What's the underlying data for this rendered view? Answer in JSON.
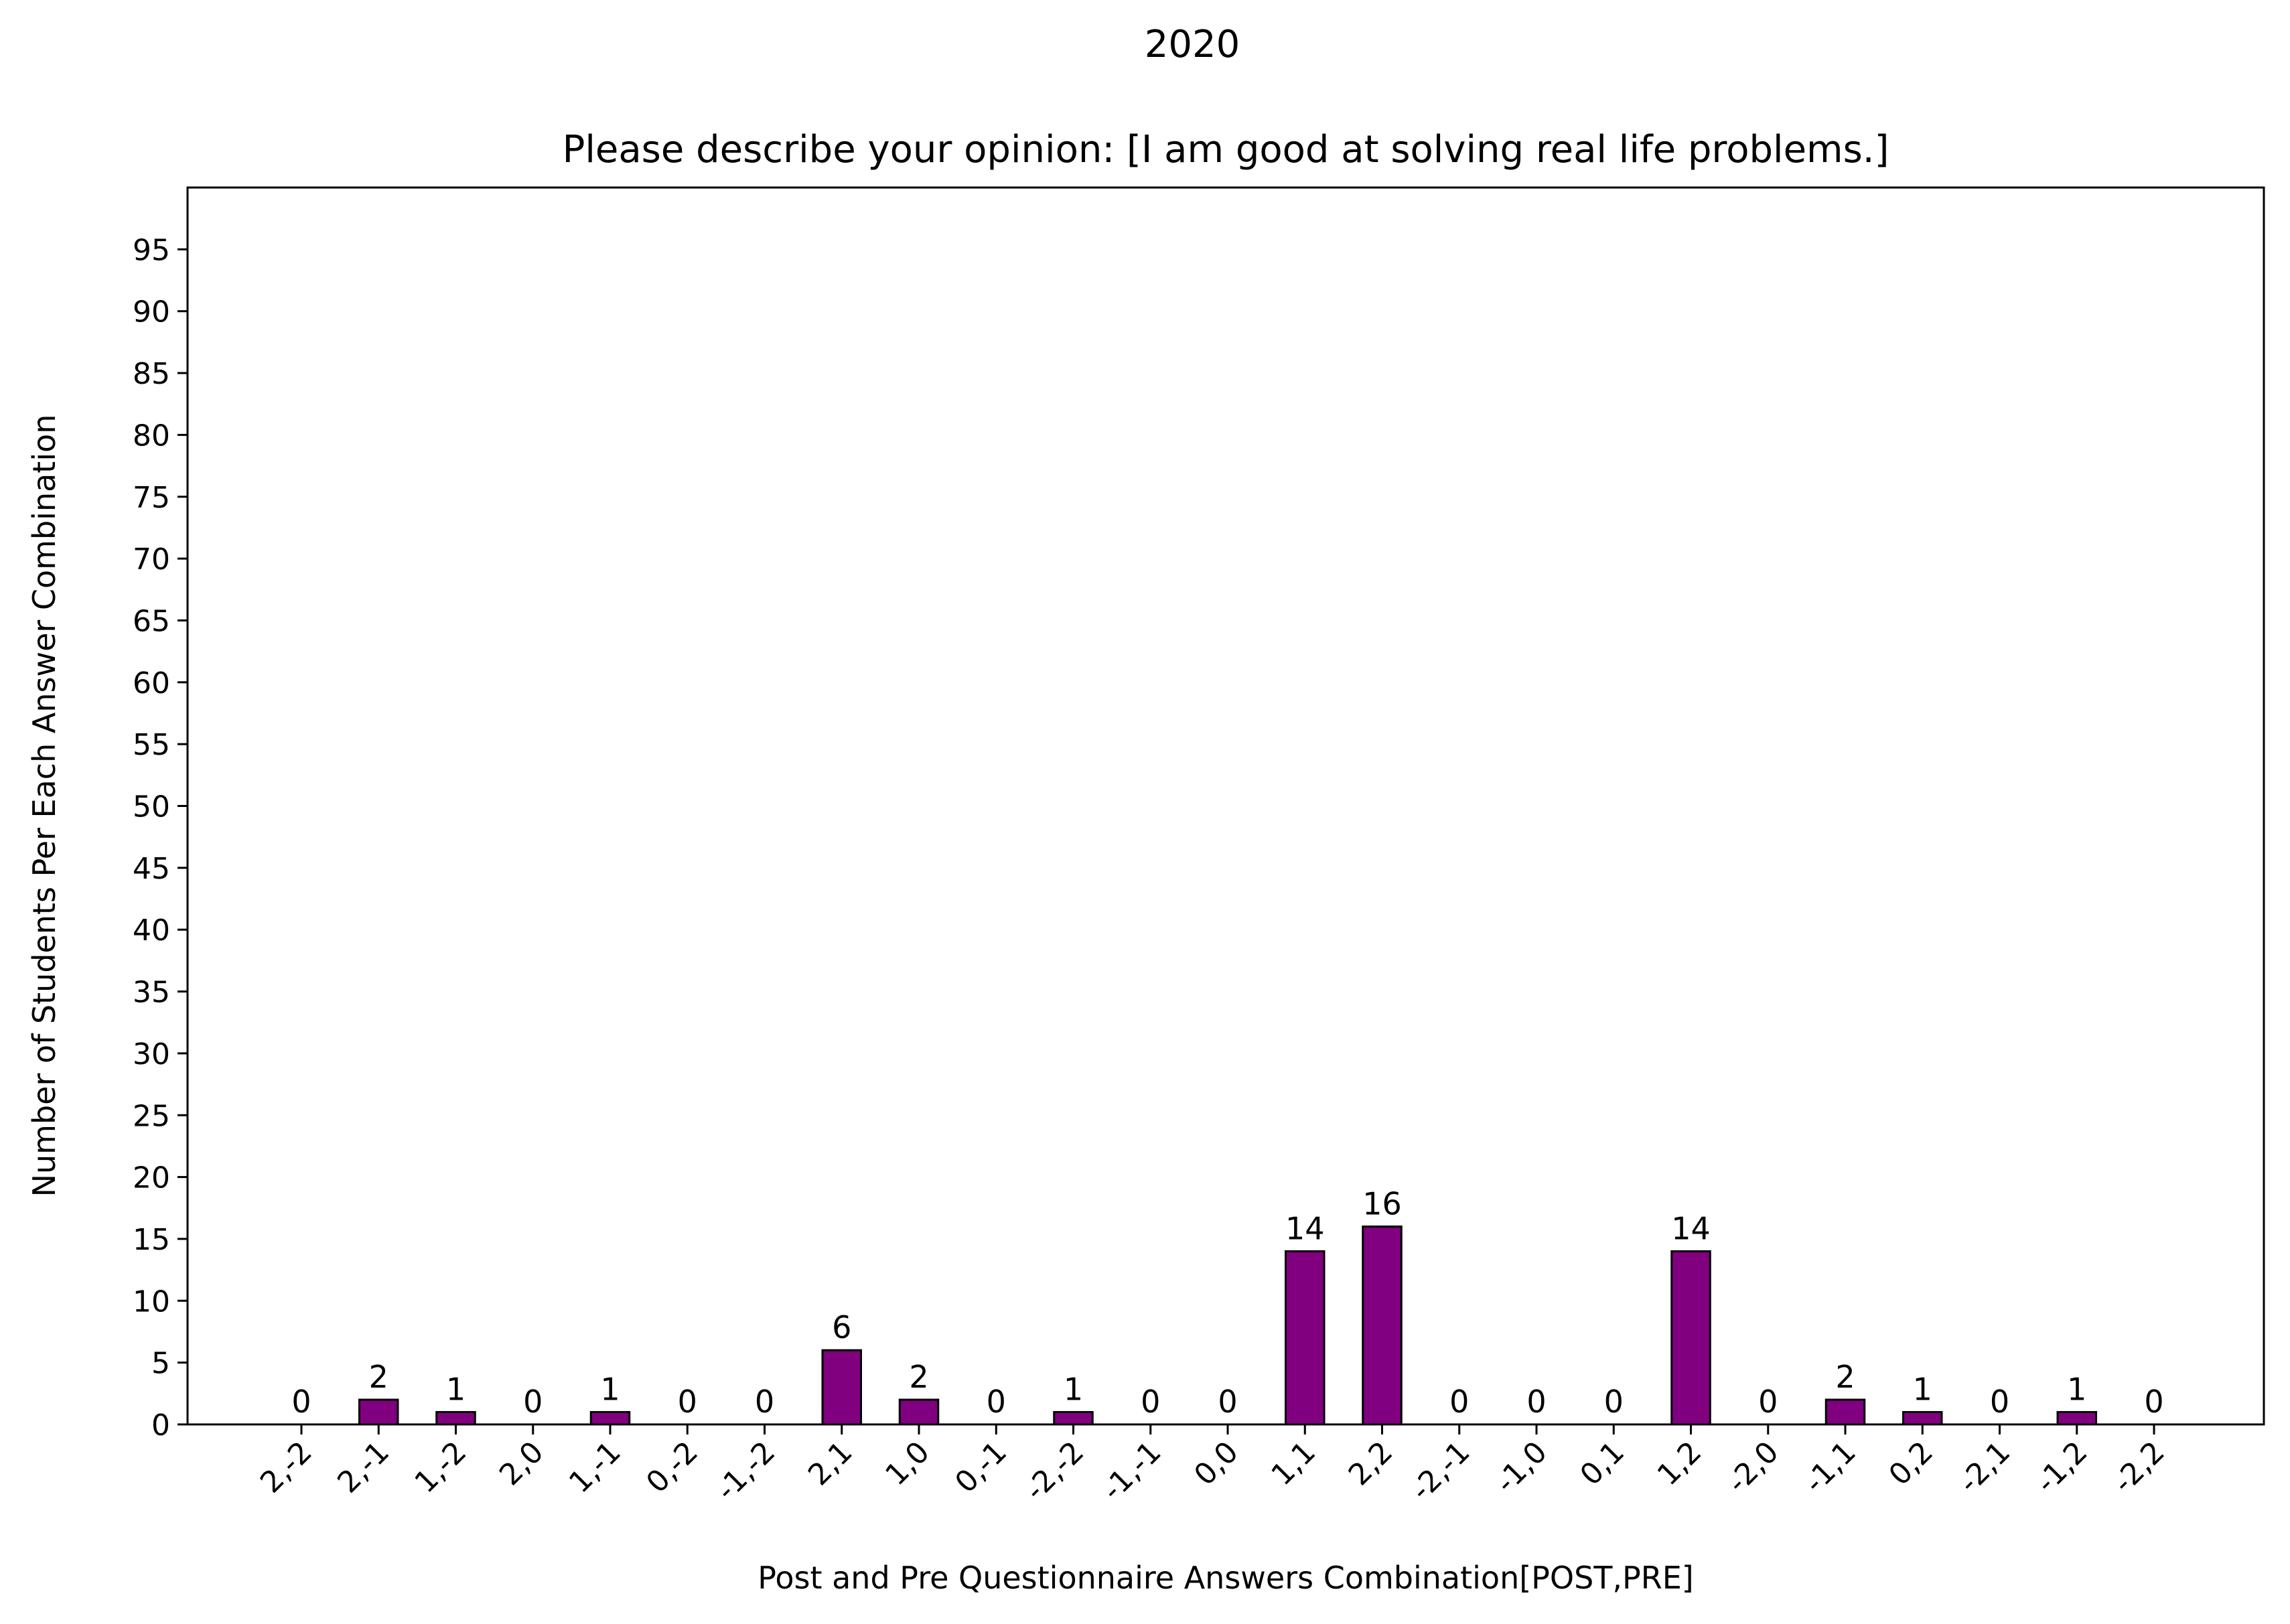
{
  "chart_data": {
    "type": "bar",
    "suptitle": "2020",
    "title": "Please describe your opinion: [I am good at solving real life problems.]",
    "xlabel": "Post and Pre Questionnaire Answers Combination[POST,PRE]",
    "ylabel": "Number of Students Per Each Answer Combination",
    "categories": [
      "2,-2",
      "2,-1",
      "1,-2",
      "2,0",
      "1,-1",
      "0,-2",
      "-1,-2",
      "2,1",
      "1,0",
      "0,-1",
      "-2,-2",
      "-1,-1",
      "0,0",
      "1,1",
      "2,2",
      "-2,-1",
      "-1,0",
      "0,1",
      "1,2",
      "-2,0",
      "-1,1",
      "0,2",
      "-2,1",
      "-1,2",
      "-2,2"
    ],
    "values": [
      0,
      2,
      1,
      0,
      1,
      0,
      0,
      6,
      2,
      0,
      1,
      0,
      0,
      14,
      16,
      0,
      0,
      0,
      14,
      0,
      2,
      1,
      0,
      1,
      0
    ],
    "ylim": [
      0,
      100
    ],
    "yticks": [
      0,
      5,
      10,
      15,
      20,
      25,
      30,
      35,
      40,
      45,
      50,
      55,
      60,
      65,
      70,
      75,
      80,
      85,
      90,
      95
    ],
    "bar_color": "#800080",
    "edge_color": "#000000",
    "grid": false,
    "legend": false
  }
}
